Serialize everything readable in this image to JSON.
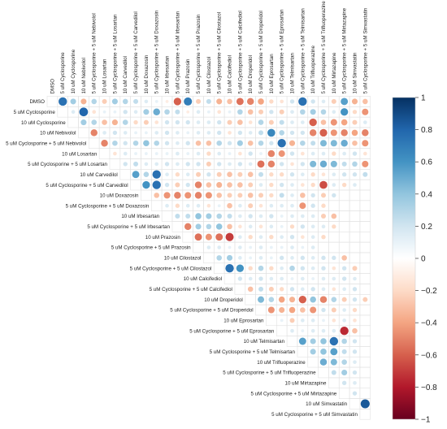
{
  "chart_data": {
    "type": "heatmap",
    "style": "upper-triangular correlation matrix, circles sized and colored by value, diagonal omitted",
    "title": "",
    "labels": [
      "DMSO",
      "5 uM Cyclosporine",
      "10 uM Cyclosporine",
      "10 uM Nebivolol",
      "5 uM  Cyclosporine + 5 uM Nebivolol",
      "10 uM Losartan",
      "5 uM Cyclosporine + 5 uM Losartan",
      "10 uM Carvedilol",
      "5 uM Cyclosporine + 5 uM Carvedilol",
      "10 uM Doxazosin",
      "5 uM Cyclosporine + 5 uM Doxazosin",
      "10 uM Irbesartan",
      "5 uM Cyclosporine + 5 uM Irbesartan",
      "10 uM Prazosin",
      "5 uM Cyclosporine + 5 uM Prazosin",
      "10 uM Cilostazol",
      "5 uM Cyclosporine + 5 uM Cilostazol",
      "10 uM Calcifediol",
      "5 uM Cyclosporine + 5 uM Calcifediol",
      "10 uM Droperidol",
      "5 uM Cyclosporine + 5 uM Droperidol",
      "10 uM Eprosartan",
      "5 uM Cyclosporine + 5 uM Eprosartan",
      "10 uM Telmisartan",
      "5 uM Cyclosporine + 5 uM Telmisartan",
      "10 uM Trifluoperazine",
      "5 uM Cyclosporine + 5 uM Trifluoperazine",
      "10 uM Mirtazapine",
      "5 uM Cyclosporine + 5 uM Mirtazapine",
      "10 uM Simvastatin",
      "5 uM Cyclosporine + 5 uM Simvastatin"
    ],
    "colorbar": {
      "range": [
        -1,
        1
      ],
      "ticks": [
        "1",
        "0.8",
        "0.6",
        "0.4",
        "0.2",
        "0",
        "−0.2",
        "−0.4",
        "−0.6",
        "−0.8",
        "−1"
      ]
    },
    "colors": {
      "negative": "#67001f",
      "neutral": "#ffffff",
      "positive": "#053061"
    },
    "rows": [
      [
        0.75,
        0.35,
        -0.35,
        0.3,
        -0.25,
        0.35,
        0.3,
        0.25,
        0.15,
        0.1,
        -0.1,
        -0.6,
        0.7,
        -0.25,
        0.25,
        -0.35,
        -0.3,
        -0.55,
        -0.5,
        -0.4,
        -0.2,
        -0.15,
        0.2,
        0.75,
        0.2,
        0.15,
        -0.25,
        0.55,
        -0.35,
        -0.3
      ],
      [
        0.15,
        0.8,
        -0.15,
        0.1,
        0.1,
        0.2,
        0.15,
        0.35,
        0.5,
        0.3,
        0.25,
        -0.1,
        0.15,
        0.1,
        -0.15,
        0.1,
        0.3,
        -0.3,
        -0.25,
        0.2,
        -0.25,
        0.15,
        0.3,
        0.35,
        0.3,
        0.15,
        0.6,
        -0.2,
        -0.45,
        0.55
      ],
      [
        0.35,
        0.3,
        -0.3,
        -0.35,
        0.3,
        -0.2,
        -0.25,
        -0.15,
        0.2,
        0.2,
        0.2,
        0.15,
        0.15,
        0.2,
        -0.25,
        -0.3,
        -0.15,
        0.3,
        -0.25,
        0.25,
        0.15,
        0.15,
        -0.6,
        -0.3,
        -0.45,
        -0.4,
        -0.25,
        0.15,
        0.3,
        0.7
      ],
      [
        -0.5,
        0.15,
        0.2,
        0.15,
        0.1,
        0.1,
        0.15,
        0.2,
        0.15,
        0.1,
        0.15,
        0.15,
        0.2,
        -0.15,
        0.2,
        0.15,
        0.25,
        0.65,
        0.3,
        0.2,
        0.2,
        -0.5,
        -0.6,
        -0.45,
        -0.5,
        -0.4,
        -0.5,
        0.2,
        -0.4,
        0.5
      ],
      [
        -0.5,
        0.3,
        0.2,
        0.3,
        0.4,
        0.3,
        0.2,
        0.15,
        0.2,
        -0.3,
        -0.3,
        0.3,
        0.2,
        0.35,
        -0.3,
        0.3,
        0.2,
        0.75,
        -0.35,
        0.3,
        0.25,
        0.45,
        0.45,
        0.5,
        -0.3,
        -0.45,
        -0.55,
        0.8,
        0.8
      ],
      [
        -0.15,
        0.15,
        0.1,
        0.1,
        0.1,
        0.1,
        0.15,
        0.1,
        0.15,
        -0.2,
        0.15,
        0.1,
        -0.15,
        0.2,
        0.1,
        -0.5,
        -0.45,
        0.2,
        -0.15,
        0.15,
        0.15,
        -0.2,
        0.15,
        0.2,
        -0.15,
        0.2,
        0.25,
        0.2
      ],
      [
        0.2,
        0.25,
        0.15,
        0.15,
        0.2,
        0.15,
        0.2,
        0.2,
        -0.25,
        0.2,
        0.15,
        0.2,
        0.15,
        -0.55,
        -0.5,
        0.2,
        -0.15,
        0.2,
        0.45,
        0.5,
        0.45,
        0.25,
        0.3,
        -0.45,
        0.2,
        0.5
      ],
      [
        0.55,
        0.3,
        0.75,
        0.15,
        -0.2,
        0.15,
        -0.25,
        0.2,
        -0.25,
        -0.3,
        -0.25,
        -0.3,
        0.25,
        -0.2,
        -0.2,
        0.2,
        0.15,
        -0.2,
        -0.15,
        0.15,
        0.2,
        0.2,
        0.25
      ],
      [
        0.6,
        0.75,
        0.2,
        -0.25,
        0.2,
        -0.5,
        -0.3,
        -0.35,
        -0.3,
        -0.3,
        -0.25,
        0.15,
        -0.2,
        0.2,
        0.15,
        -0.15,
        -0.2,
        -0.65,
        0.15,
        -0.2,
        0.15
      ],
      [
        -0.3,
        -0.45,
        -0.5,
        -0.45,
        -0.5,
        -0.45,
        -0.3,
        -0.25,
        -0.25,
        -0.3,
        -0.25,
        -0.2,
        0.25,
        0.15,
        -0.3,
        0.2,
        -0.25,
        0.2
      ],
      [
        0.15,
        -0.2,
        0.15,
        0.15,
        -0.15,
        0.1,
        -0.3,
        0.15,
        -0.25,
        -0.15,
        0.15,
        0.15,
        0.15,
        -0.45,
        0.2,
        -0.2
      ],
      [
        0.25,
        0.25,
        0.4,
        0.35,
        0.3,
        0.25,
        0.15,
        0.2,
        0.15,
        0.2,
        0.1,
        0.15,
        0.15,
        0.15,
        -0.25,
        -0.3
      ],
      [
        -0.5,
        0.35,
        0.3,
        0.4,
        -0.3,
        -0.15,
        0.15,
        -0.15,
        0.15,
        0.1,
        -0.2,
        0.2,
        0.15,
        0.15,
        -0.2
      ],
      [
        -0.55,
        -0.45,
        -0.55,
        -0.7,
        0.15,
        -0.2,
        0.15,
        -0.2,
        0.15,
        0.2,
        -0.15,
        0.15,
        -0.2
      ],
      [
        0.15,
        0.15,
        0.1,
        0.15,
        0.1,
        0.15,
        0.1,
        0.1,
        0.15,
        0.1,
        0.15
      ],
      [
        0.3,
        0.35,
        0.15,
        0.1,
        0.15,
        0.1,
        0.2,
        0.15,
        0.2,
        0.15,
        0.2,
        0.2,
        -0.3
      ],
      [
        0.75,
        0.6,
        -0.2,
        0.3,
        -0.2,
        0.15,
        0.3,
        0.2,
        0.15,
        0.2,
        -0.15,
        0.2,
        -0.25
      ],
      [
        0.2,
        0.15,
        0.2,
        0.15,
        0.15,
        0.1,
        0.15,
        0.1,
        0.15,
        0.15,
        0.2,
        0.15
      ],
      [
        -0.3,
        0.25,
        -0.25,
        -0.2,
        0.2,
        0.15,
        0.2,
        0.15,
        -0.15,
        0.15,
        0.2
      ],
      [
        0.45,
        0.3,
        -0.4,
        -0.35,
        -0.6,
        0.4,
        -0.5,
        0.3,
        -0.25,
        0.2,
        -0.25
      ],
      [
        -0.45,
        -0.35,
        -0.4,
        -0.3,
        -0.45,
        0.2,
        -0.25,
        0.15,
        -0.2
      ],
      [
        0.1,
        -0.25,
        0.15,
        0.15,
        0.1,
        -0.15,
        0.15,
        -0.15
      ],
      [
        0.15,
        0.1,
        0.15,
        0.15,
        0.15,
        -0.75,
        -0.3
      ],
      [
        0.55,
        0.35,
        0.4,
        0.75,
        0.3,
        0.2
      ],
      [
        0.35,
        0.4,
        0.55,
        0.25,
        0.2
      ],
      [
        0.5,
        0.45,
        0.3,
        0.15
      ],
      [
        0.25,
        0.35,
        0.2
      ],
      [
        0.2,
        0.15
      ],
      [
        0.2
      ],
      [
        0.85
      ]
    ]
  }
}
